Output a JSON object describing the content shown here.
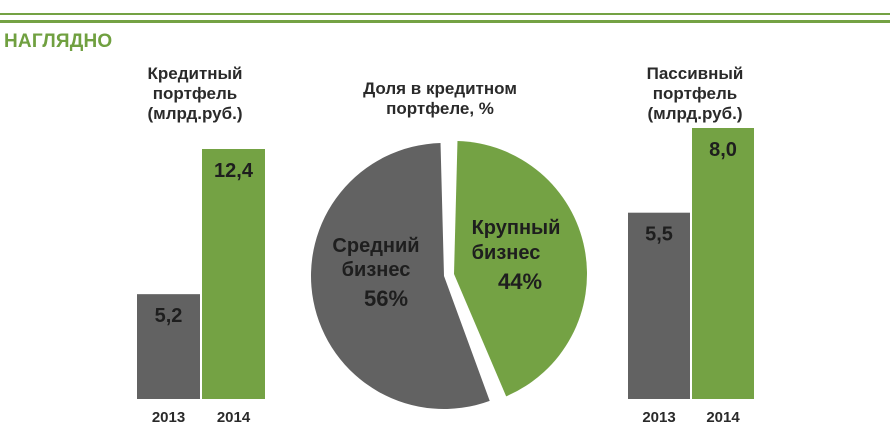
{
  "section_title": "НАГЛЯДНО",
  "colors": {
    "gray": "#626262",
    "green": "#74a244",
    "rule": "#74a244"
  },
  "chart_data": [
    {
      "type": "bar",
      "title": "Кредитный\nпортфель\n(млрд.руб.)",
      "categories": [
        "2013",
        "2014"
      ],
      "values": [
        5.2,
        12.4
      ],
      "value_labels": [
        "5,2",
        "12,4"
      ]
    },
    {
      "type": "pie",
      "title": "Доля в кредитном\nпортфеле, %",
      "slices": [
        {
          "label_line1": "Средний",
          "label_line2": "бизнес",
          "value": 56,
          "value_label": "56%"
        },
        {
          "label_line1": "Крупный",
          "label_line2": "бизнес",
          "value": 44,
          "value_label": "44%"
        }
      ]
    },
    {
      "type": "bar",
      "title": "Пассивный\nпортфель\n(млрд.руб.)",
      "categories": [
        "2013",
        "2014"
      ],
      "values": [
        5.5,
        8.0
      ],
      "value_labels": [
        "5,5",
        "8,0"
      ]
    }
  ]
}
